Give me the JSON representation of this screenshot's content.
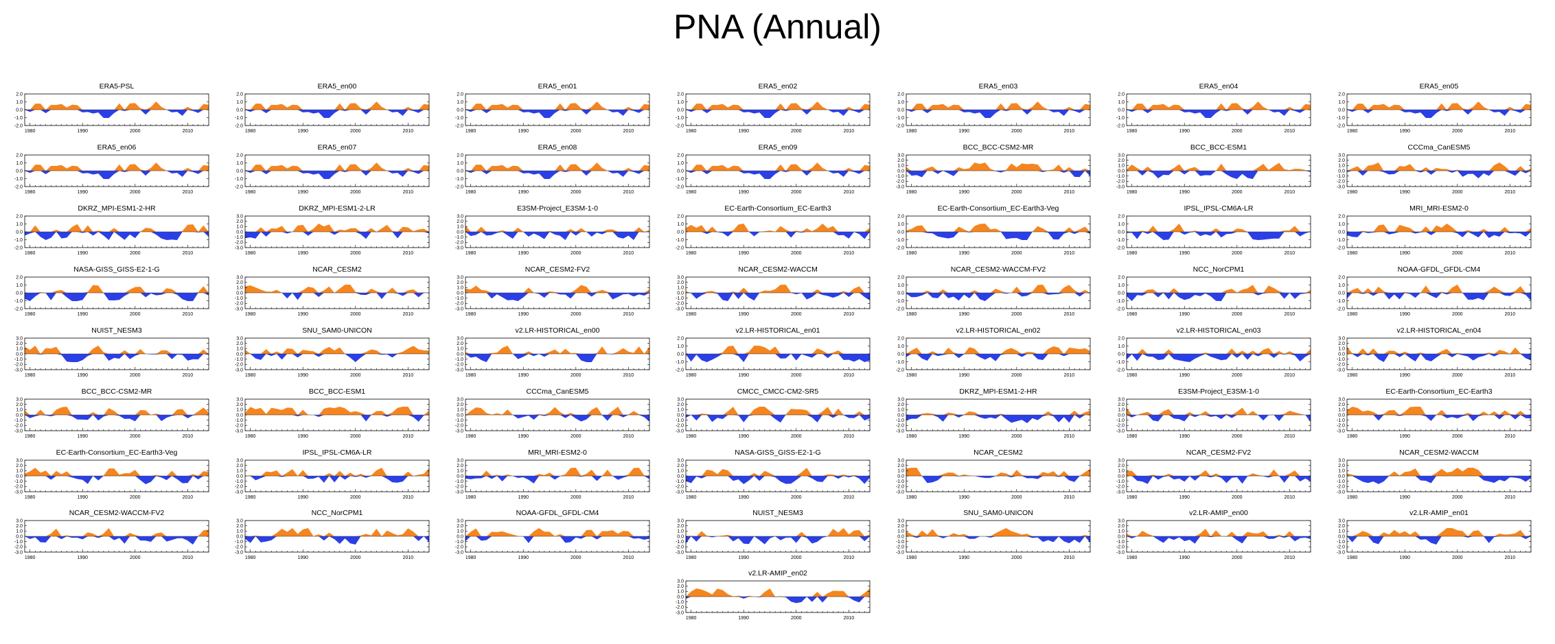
{
  "page_title": "PNA (Annual)",
  "colors": {
    "positive": "#f5851f",
    "negative": "#2b3fe6",
    "axis": "#000000"
  },
  "x_ticks": [
    "1980",
    "1990",
    "2000",
    "2010"
  ],
  "y_ticks_small": [
    "2.0",
    "1.0",
    "0.0",
    "-1.0",
    "-2.0"
  ],
  "y_ticks_large": [
    "3.0",
    "2.0",
    "1.0",
    "0.0",
    "-1.0",
    "-2.0",
    "-3.0"
  ],
  "chart_data": [
    {
      "type": "area",
      "title": "ERA5-PSL",
      "xlim": [
        1979,
        2014
      ],
      "ylim": [
        -2,
        2
      ],
      "series_seed": 1
    },
    {
      "type": "area",
      "title": "ERA5_en00",
      "xlim": [
        1979,
        2014
      ],
      "ylim": [
        -2,
        2
      ],
      "series_seed": 1
    },
    {
      "type": "area",
      "title": "ERA5_en01",
      "xlim": [
        1979,
        2014
      ],
      "ylim": [
        -2,
        2
      ],
      "series_seed": 1
    },
    {
      "type": "area",
      "title": "ERA5_en02",
      "xlim": [
        1979,
        2014
      ],
      "ylim": [
        -2,
        2
      ],
      "series_seed": 1
    },
    {
      "type": "area",
      "title": "ERA5_en03",
      "xlim": [
        1979,
        2014
      ],
      "ylim": [
        -2,
        2
      ],
      "series_seed": 1
    },
    {
      "type": "area",
      "title": "ERA5_en04",
      "xlim": [
        1979,
        2014
      ],
      "ylim": [
        -2,
        2
      ],
      "series_seed": 1
    },
    {
      "type": "area",
      "title": "ERA5_en05",
      "xlim": [
        1979,
        2014
      ],
      "ylim": [
        -2,
        2
      ],
      "series_seed": 1
    },
    {
      "type": "area",
      "title": "ERA5_en06",
      "xlim": [
        1979,
        2014
      ],
      "ylim": [
        -2,
        2
      ],
      "series_seed": 1
    },
    {
      "type": "area",
      "title": "ERA5_en07",
      "xlim": [
        1979,
        2014
      ],
      "ylim": [
        -2,
        2
      ],
      "series_seed": 1
    },
    {
      "type": "area",
      "title": "ERA5_en08",
      "xlim": [
        1979,
        2014
      ],
      "ylim": [
        -2,
        2
      ],
      "series_seed": 1
    },
    {
      "type": "area",
      "title": "ERA5_en09",
      "xlim": [
        1979,
        2014
      ],
      "ylim": [
        -2,
        2
      ],
      "series_seed": 1
    },
    {
      "type": "area",
      "title": "BCC_BCC-CSM2-MR",
      "xlim": [
        1979,
        2014
      ],
      "ylim": [
        -3,
        3
      ],
      "series_seed": 12
    },
    {
      "type": "area",
      "title": "BCC_BCC-ESM1",
      "xlim": [
        1979,
        2014
      ],
      "ylim": [
        -3,
        3
      ],
      "series_seed": 13
    },
    {
      "type": "area",
      "title": "CCCma_CanESM5",
      "xlim": [
        1979,
        2014
      ],
      "ylim": [
        -3,
        3
      ],
      "series_seed": 14
    },
    {
      "type": "area",
      "title": "DKRZ_MPI-ESM1-2-HR",
      "xlim": [
        1979,
        2014
      ],
      "ylim": [
        -2,
        2
      ],
      "series_seed": 15
    },
    {
      "type": "area",
      "title": "DKRZ_MPI-ESM1-2-LR",
      "xlim": [
        1979,
        2014
      ],
      "ylim": [
        -3,
        3
      ],
      "series_seed": 16
    },
    {
      "type": "area",
      "title": "E3SM-Project_E3SM-1-0",
      "xlim": [
        1979,
        2014
      ],
      "ylim": [
        -3,
        3
      ],
      "series_seed": 17
    },
    {
      "type": "area",
      "title": "EC-Earth-Consortium_EC-Earth3",
      "xlim": [
        1979,
        2014
      ],
      "ylim": [
        -2,
        2
      ],
      "series_seed": 18
    },
    {
      "type": "area",
      "title": "EC-Earth-Consortium_EC-Earth3-Veg",
      "xlim": [
        1979,
        2014
      ],
      "ylim": [
        -2,
        2
      ],
      "series_seed": 19
    },
    {
      "type": "area",
      "title": "IPSL_IPSL-CM6A-LR",
      "xlim": [
        1979,
        2014
      ],
      "ylim": [
        -2,
        2
      ],
      "series_seed": 20
    },
    {
      "type": "area",
      "title": "MRI_MRI-ESM2-0",
      "xlim": [
        1979,
        2014
      ],
      "ylim": [
        -2,
        2
      ],
      "series_seed": 21
    },
    {
      "type": "area",
      "title": "NASA-GISS_GISS-E2-1-G",
      "xlim": [
        1979,
        2014
      ],
      "ylim": [
        -2,
        2
      ],
      "series_seed": 22
    },
    {
      "type": "area",
      "title": "NCAR_CESM2",
      "xlim": [
        1979,
        2014
      ],
      "ylim": [
        -3,
        3
      ],
      "series_seed": 23
    },
    {
      "type": "area",
      "title": "NCAR_CESM2-FV2",
      "xlim": [
        1979,
        2014
      ],
      "ylim": [
        -3,
        3
      ],
      "series_seed": 24
    },
    {
      "type": "area",
      "title": "NCAR_CESM2-WACCM",
      "xlim": [
        1979,
        2014
      ],
      "ylim": [
        -3,
        3
      ],
      "series_seed": 25
    },
    {
      "type": "area",
      "title": "NCAR_CESM2-WACCM-FV2",
      "xlim": [
        1979,
        2014
      ],
      "ylim": [
        -2,
        2
      ],
      "series_seed": 26
    },
    {
      "type": "area",
      "title": "NCC_NorCPM1",
      "xlim": [
        1979,
        2014
      ],
      "ylim": [
        -2,
        2
      ],
      "series_seed": 27
    },
    {
      "type": "area",
      "title": "NOAA-GFDL_GFDL-CM4",
      "xlim": [
        1979,
        2014
      ],
      "ylim": [
        -2,
        2
      ],
      "series_seed": 28
    },
    {
      "type": "area",
      "title": "NUIST_NESM3",
      "xlim": [
        1979,
        2014
      ],
      "ylim": [
        -3,
        3
      ],
      "series_seed": 29
    },
    {
      "type": "area",
      "title": "SNU_SAM0-UNICON",
      "xlim": [
        1979,
        2014
      ],
      "ylim": [
        -3,
        3
      ],
      "series_seed": 30
    },
    {
      "type": "area",
      "title": "v2.LR-HISTORICAL_en00",
      "xlim": [
        1979,
        2014
      ],
      "ylim": [
        -3,
        3
      ],
      "series_seed": 31
    },
    {
      "type": "area",
      "title": "v2.LR-HISTORICAL_en01",
      "xlim": [
        1979,
        2014
      ],
      "ylim": [
        -2,
        2
      ],
      "series_seed": 32
    },
    {
      "type": "area",
      "title": "v2.LR-HISTORICAL_en02",
      "xlim": [
        1979,
        2014
      ],
      "ylim": [
        -2,
        2
      ],
      "series_seed": 33
    },
    {
      "type": "area",
      "title": "v2.LR-HISTORICAL_en03",
      "xlim": [
        1979,
        2014
      ],
      "ylim": [
        -2,
        2
      ],
      "series_seed": 34
    },
    {
      "type": "area",
      "title": "v2.LR-HISTORICAL_en04",
      "xlim": [
        1979,
        2014
      ],
      "ylim": [
        -3,
        3
      ],
      "series_seed": 35
    },
    {
      "type": "area",
      "title": "BCC_BCC-CSM2-MR",
      "xlim": [
        1979,
        2014
      ],
      "ylim": [
        -3,
        3
      ],
      "series_seed": 36
    },
    {
      "type": "area",
      "title": "BCC_BCC-ESM1",
      "xlim": [
        1979,
        2014
      ],
      "ylim": [
        -3,
        3
      ],
      "series_seed": 37
    },
    {
      "type": "area",
      "title": "CCCma_CanESM5",
      "xlim": [
        1979,
        2014
      ],
      "ylim": [
        -3,
        3
      ],
      "series_seed": 38
    },
    {
      "type": "area",
      "title": "CMCC_CMCC-CM2-SR5",
      "xlim": [
        1979,
        2014
      ],
      "ylim": [
        -3,
        3
      ],
      "series_seed": 39
    },
    {
      "type": "area",
      "title": "DKRZ_MPI-ESM1-2-HR",
      "xlim": [
        1979,
        2014
      ],
      "ylim": [
        -3,
        3
      ],
      "series_seed": 40
    },
    {
      "type": "area",
      "title": "E3SM-Project_E3SM-1-0",
      "xlim": [
        1979,
        2014
      ],
      "ylim": [
        -3,
        3
      ],
      "series_seed": 41
    },
    {
      "type": "area",
      "title": "EC-Earth-Consortium_EC-Earth3",
      "xlim": [
        1979,
        2014
      ],
      "ylim": [
        -3,
        3
      ],
      "series_seed": 42
    },
    {
      "type": "area",
      "title": "EC-Earth-Consortium_EC-Earth3-Veg",
      "xlim": [
        1979,
        2014
      ],
      "ylim": [
        -3,
        3
      ],
      "series_seed": 43
    },
    {
      "type": "area",
      "title": "IPSL_IPSL-CM6A-LR",
      "xlim": [
        1979,
        2014
      ],
      "ylim": [
        -3,
        3
      ],
      "series_seed": 44
    },
    {
      "type": "area",
      "title": "MRI_MRI-ESM2-0",
      "xlim": [
        1979,
        2014
      ],
      "ylim": [
        -3,
        3
      ],
      "series_seed": 45
    },
    {
      "type": "area",
      "title": "NASA-GISS_GISS-E2-1-G",
      "xlim": [
        1979,
        2014
      ],
      "ylim": [
        -3,
        3
      ],
      "series_seed": 46
    },
    {
      "type": "area",
      "title": "NCAR_CESM2",
      "xlim": [
        1979,
        2014
      ],
      "ylim": [
        -3,
        3
      ],
      "series_seed": 47
    },
    {
      "type": "area",
      "title": "NCAR_CESM2-FV2",
      "xlim": [
        1979,
        2014
      ],
      "ylim": [
        -3,
        3
      ],
      "series_seed": 48
    },
    {
      "type": "area",
      "title": "NCAR_CESM2-WACCM",
      "xlim": [
        1979,
        2014
      ],
      "ylim": [
        -3,
        3
      ],
      "series_seed": 49
    },
    {
      "type": "area",
      "title": "NCAR_CESM2-WACCM-FV2",
      "xlim": [
        1979,
        2014
      ],
      "ylim": [
        -3,
        3
      ],
      "series_seed": 50
    },
    {
      "type": "area",
      "title": "NCC_NorCPM1",
      "xlim": [
        1979,
        2014
      ],
      "ylim": [
        -3,
        3
      ],
      "series_seed": 51
    },
    {
      "type": "area",
      "title": "NOAA-GFDL_GFDL-CM4",
      "xlim": [
        1979,
        2014
      ],
      "ylim": [
        -3,
        3
      ],
      "series_seed": 52
    },
    {
      "type": "area",
      "title": "NUIST_NESM3",
      "xlim": [
        1979,
        2014
      ],
      "ylim": [
        -3,
        3
      ],
      "series_seed": 53
    },
    {
      "type": "area",
      "title": "SNU_SAM0-UNICON",
      "xlim": [
        1979,
        2014
      ],
      "ylim": [
        -3,
        3
      ],
      "series_seed": 54
    },
    {
      "type": "area",
      "title": "v2.LR-AMIP_en00",
      "xlim": [
        1979,
        2014
      ],
      "ylim": [
        -3,
        3
      ],
      "series_seed": 55
    },
    {
      "type": "area",
      "title": "v2.LR-AMIP_en01",
      "xlim": [
        1979,
        2014
      ],
      "ylim": [
        -3,
        3
      ],
      "series_seed": 56
    },
    {
      "type": "area",
      "title": "v2.LR-AMIP_en02",
      "xlim": [
        1979,
        2014
      ],
      "ylim": [
        -3,
        3
      ],
      "series_seed": 57
    }
  ]
}
